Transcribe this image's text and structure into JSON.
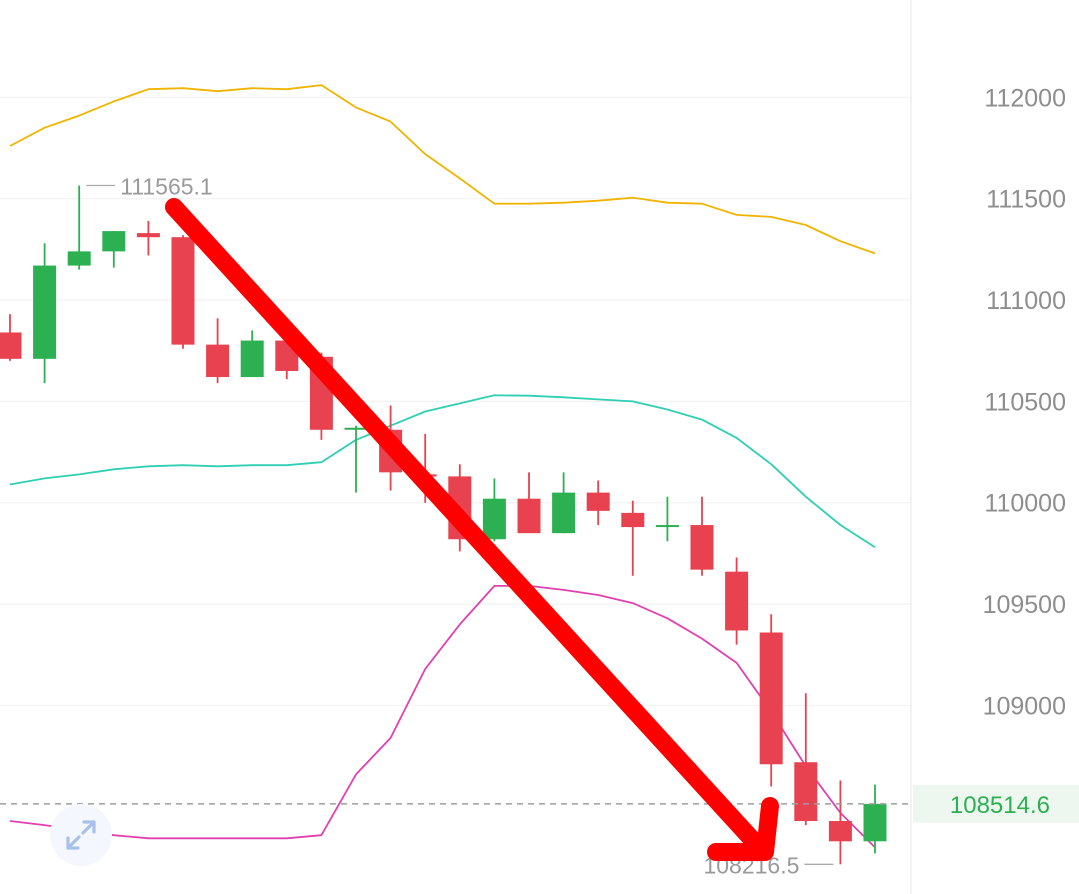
{
  "chart_data": {
    "type": "candlestick",
    "y_ticks": [
      109000,
      109500,
      110000,
      110500,
      111000,
      111500,
      112000
    ],
    "ylim": [
      108070,
      112480
    ],
    "grid": true,
    "candles": [
      {
        "o": 110840,
        "h": 110930,
        "l": 110700,
        "c": 110710
      },
      {
        "o": 110710,
        "h": 111280,
        "l": 110590,
        "c": 111170
      },
      {
        "o": 111170,
        "h": 111565.1,
        "l": 111150,
        "c": 111240
      },
      {
        "o": 111240,
        "h": 111340,
        "l": 111160,
        "c": 111340
      },
      {
        "o": 111330,
        "h": 111390,
        "l": 111220,
        "c": 111310
      },
      {
        "o": 111310,
        "h": 111320,
        "l": 110760,
        "c": 110780
      },
      {
        "o": 110780,
        "h": 110910,
        "l": 110590,
        "c": 110620
      },
      {
        "o": 110620,
        "h": 110850,
        "l": 110620,
        "c": 110800
      },
      {
        "o": 110800,
        "h": 110800,
        "l": 110610,
        "c": 110650
      },
      {
        "o": 110720,
        "h": 110740,
        "l": 110310,
        "c": 110360
      },
      {
        "o": 110370,
        "h": 110380,
        "l": 110050,
        "c": 110370
      },
      {
        "o": 110360,
        "h": 110480,
        "l": 110060,
        "c": 110150
      },
      {
        "o": 110140,
        "h": 110340,
        "l": 110000,
        "c": 110130
      },
      {
        "o": 110130,
        "h": 110190,
        "l": 109760,
        "c": 109820
      },
      {
        "o": 109820,
        "h": 110120,
        "l": 109810,
        "c": 110020
      },
      {
        "o": 110020,
        "h": 110150,
        "l": 109860,
        "c": 109850
      },
      {
        "o": 109850,
        "h": 110150,
        "l": 109850,
        "c": 110050
      },
      {
        "o": 110050,
        "h": 110110,
        "l": 109890,
        "c": 109960
      },
      {
        "o": 109950,
        "h": 110010,
        "l": 109640,
        "c": 109880
      },
      {
        "o": 109880,
        "h": 110030,
        "l": 109810,
        "c": 109890
      },
      {
        "o": 109890,
        "h": 110030,
        "l": 109640,
        "c": 109670
      },
      {
        "o": 109660,
        "h": 109730,
        "l": 109300,
        "c": 109370
      },
      {
        "o": 109360,
        "h": 109450,
        "l": 108600,
        "c": 108710
      },
      {
        "o": 108720,
        "h": 109060,
        "l": 108410,
        "c": 108430
      },
      {
        "o": 108430,
        "h": 108630,
        "l": 108216.5,
        "c": 108330
      },
      {
        "o": 108330,
        "h": 108610,
        "l": 108270,
        "c": 108514.6
      }
    ],
    "upper_band": [
      111760,
      111850,
      111910,
      111980,
      112040,
      112045,
      112030,
      112045,
      112040,
      112060,
      111950,
      111880,
      111720,
      111600,
      111475,
      111475,
      111480,
      111490,
      111505,
      111480,
      111475,
      111420,
      111410,
      111370,
      111290,
      111230
    ],
    "middle_band": [
      110090,
      110120,
      110140,
      110165,
      110180,
      110185,
      110180,
      110185,
      110185,
      110200,
      110310,
      110380,
      110450,
      110490,
      110530,
      110528,
      110520,
      110510,
      110500,
      110460,
      110410,
      110320,
      110190,
      110030,
      109890,
      109780
    ],
    "lower_band": [
      108430,
      108410,
      108385,
      108360,
      108345,
      108345,
      108345,
      108345,
      108345,
      108360,
      108660,
      108840,
      109180,
      109400,
      109590,
      109590,
      109570,
      109545,
      109505,
      109430,
      109330,
      109210,
      108970,
      108700,
      108470,
      108300
    ],
    "highest_label": "111565.1",
    "lowest_label": "108216.5",
    "last_price": "108514.6",
    "colors": {
      "up": "#2cb052",
      "down": "#e8414f",
      "upper_band": "#f0b400",
      "middle_band": "#2ecfb2",
      "lower_band": "#e040b0",
      "arrow": "#ff0000",
      "last_price": "#2cb052"
    }
  },
  "controls": {
    "expand_icon": "expand-arrows-icon"
  }
}
